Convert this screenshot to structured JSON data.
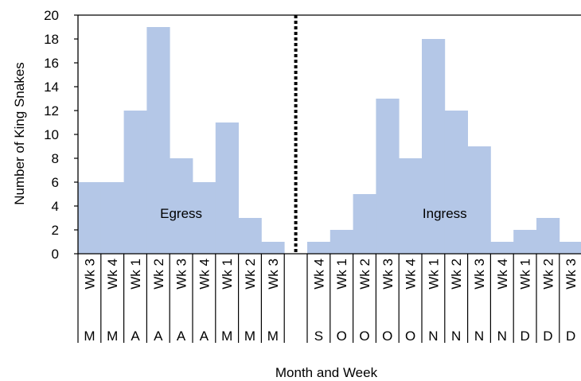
{
  "chart_data": {
    "type": "bar",
    "title": "",
    "xlabel": "Month and Week",
    "ylabel": "Number of King Snakes",
    "ylim": [
      0,
      20
    ],
    "yticks": [
      0,
      2,
      4,
      6,
      8,
      10,
      12,
      14,
      16,
      18,
      20
    ],
    "grid": false,
    "legend": "none",
    "bar_color": "#b4c7e7",
    "divider_style": "dotted",
    "groups": [
      {
        "label": "Egress",
        "categories": [
          {
            "week": "Wk 3",
            "month": "M"
          },
          {
            "week": "Wk 4",
            "month": "M"
          },
          {
            "week": "Wk 1",
            "month": "A"
          },
          {
            "week": "Wk 2",
            "month": "A"
          },
          {
            "week": "Wk 3",
            "month": "A"
          },
          {
            "week": "Wk 4",
            "month": "A"
          },
          {
            "week": "Wk 1",
            "month": "M"
          },
          {
            "week": "Wk 2",
            "month": "M"
          },
          {
            "week": "Wk 3",
            "month": "M"
          }
        ],
        "values": [
          6,
          6,
          12,
          19,
          8,
          6,
          11,
          3,
          1
        ]
      },
      {
        "label": "Ingress",
        "categories": [
          {
            "week": "Wk 4",
            "month": "S"
          },
          {
            "week": "Wk 1",
            "month": "O"
          },
          {
            "week": "Wk 2",
            "month": "O"
          },
          {
            "week": "Wk 3",
            "month": "O"
          },
          {
            "week": "Wk 4",
            "month": "O"
          },
          {
            "week": "Wk 1",
            "month": "N"
          },
          {
            "week": "Wk 2",
            "month": "N"
          },
          {
            "week": "Wk 3",
            "month": "N"
          },
          {
            "week": "Wk 4",
            "month": "N"
          },
          {
            "week": "Wk 1",
            "month": "D"
          },
          {
            "week": "Wk 2",
            "month": "D"
          },
          {
            "week": "Wk 3",
            "month": "D"
          }
        ],
        "values": [
          1,
          2,
          5,
          13,
          8,
          18,
          12,
          9,
          1,
          2,
          3,
          1
        ]
      }
    ]
  }
}
